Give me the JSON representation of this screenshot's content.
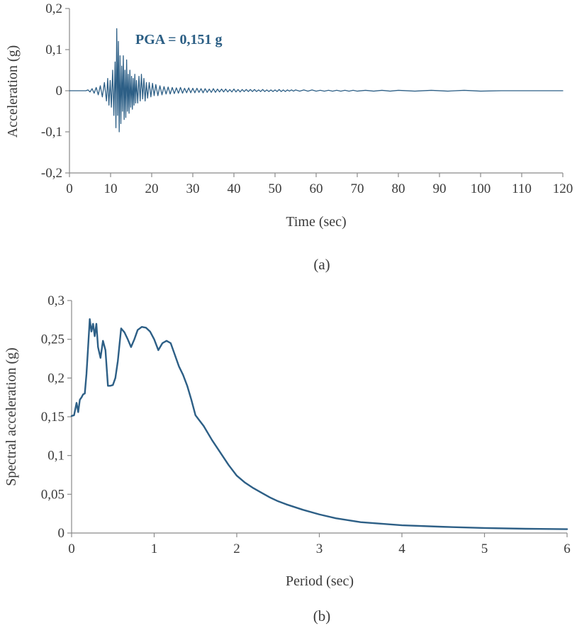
{
  "figure_labels": [
    "(a)",
    "(b)"
  ],
  "chart_data": [
    {
      "type": "line",
      "title": "",
      "xlabel": "Time (sec)",
      "ylabel": "Acceleration (g)",
      "xlim": [
        0,
        120
      ],
      "ylim": [
        -0.2,
        0.2
      ],
      "xticks": [
        0,
        10,
        20,
        30,
        40,
        50,
        60,
        70,
        80,
        90,
        100,
        110,
        120
      ],
      "xtick_labels": [
        "0",
        "10",
        "20",
        "30",
        "40",
        "50",
        "60",
        "70",
        "80",
        "90",
        "100",
        "110",
        "120"
      ],
      "yticks": [
        -0.2,
        -0.1,
        0,
        0.1,
        0.2
      ],
      "ytick_labels": [
        "-0,2",
        "-0,1",
        "0",
        "0,1",
        "0,2"
      ],
      "grid": false,
      "annotation": "PGA = 0,151 g",
      "color": "#2d5f86",
      "series": [
        {
          "x": [
            0,
            4.0,
            4.5,
            5.0,
            5.5,
            6.0,
            6.5,
            7.0,
            7.5,
            8.0,
            8.5,
            9.0,
            9.3,
            9.6,
            9.9,
            10.2,
            10.5,
            10.8,
            11.1,
            11.3,
            11.5,
            11.7,
            11.9,
            12.1,
            12.3,
            12.5,
            12.7,
            12.9,
            13.1,
            13.3,
            13.5,
            13.7,
            13.9,
            14.1,
            14.3,
            14.5,
            14.7,
            14.9,
            15.1,
            15.3,
            15.5,
            15.7,
            15.9,
            16.1,
            16.3,
            16.6,
            16.9,
            17.2,
            17.5,
            17.8,
            18.1,
            18.4,
            18.7,
            19.0,
            19.4,
            19.8,
            20.2,
            20.6,
            21.0,
            21.5,
            22.0,
            22.5,
            23.0,
            23.5,
            24.0,
            24.5,
            25.0,
            25.5,
            26.0,
            26.5,
            27.0,
            27.5,
            28.0,
            28.5,
            29.0,
            29.5,
            30.0,
            30.5,
            31.0,
            31.5,
            32.0,
            32.5,
            33.0,
            33.5,
            34.0,
            34.5,
            35.0,
            35.5,
            36.0,
            36.5,
            37.0,
            37.5,
            38.0,
            38.5,
            39.0,
            39.5,
            40.0,
            40.5,
            41.0,
            41.5,
            42.0,
            42.5,
            43.0,
            43.5,
            44.0,
            44.5,
            45.0,
            45.5,
            46.0,
            46.5,
            47.0,
            47.5,
            48.0,
            48.5,
            49.0,
            49.5,
            50.0,
            50.5,
            51.0,
            51.5,
            52.0,
            52.5,
            53.0,
            53.5,
            54.0,
            54.5,
            55.0,
            56.0,
            57.0,
            58.0,
            59.0,
            60.0,
            61.0,
            62.0,
            63.0,
            64.0,
            65.0,
            66.0,
            67.0,
            68.0,
            69.0,
            70.0,
            72.0,
            74.0,
            76.0,
            78.0,
            80.0,
            84.0,
            88.0,
            92.0,
            96.0,
            100.0,
            105.0,
            110.0,
            115.0,
            120.0
          ],
          "y": [
            0,
            0,
            0.002,
            -0.003,
            0.005,
            -0.006,
            0.008,
            -0.01,
            0.012,
            -0.015,
            0.02,
            -0.025,
            0.03,
            -0.035,
            0.025,
            -0.04,
            0.05,
            -0.06,
            0.07,
            -0.09,
            0.151,
            -0.06,
            0.12,
            -0.1,
            0.085,
            -0.08,
            0.06,
            -0.05,
            0.085,
            -0.07,
            0.05,
            -0.065,
            0.075,
            -0.05,
            0.04,
            -0.055,
            0.05,
            -0.04,
            0.035,
            -0.045,
            0.03,
            -0.035,
            0.04,
            -0.03,
            0.025,
            -0.03,
            0.035,
            -0.025,
            0.04,
            -0.02,
            0.03,
            -0.025,
            0.02,
            -0.018,
            0.02,
            -0.015,
            0.018,
            -0.012,
            0.015,
            -0.012,
            0.012,
            -0.01,
            0.01,
            -0.008,
            0.009,
            -0.008,
            0.008,
            -0.007,
            0.007,
            -0.006,
            0.008,
            -0.006,
            0.006,
            -0.005,
            0.007,
            -0.005,
            0.006,
            -0.005,
            0.006,
            -0.004,
            0.005,
            -0.005,
            0.005,
            -0.004,
            0.004,
            -0.004,
            0.005,
            -0.004,
            0.004,
            -0.003,
            0.004,
            -0.003,
            0.004,
            -0.003,
            0.003,
            -0.003,
            0.004,
            -0.003,
            0.003,
            -0.003,
            0.003,
            -0.002,
            0.003,
            -0.002,
            0.003,
            -0.002,
            0.003,
            -0.002,
            0.002,
            -0.002,
            0.003,
            -0.002,
            0.002,
            -0.002,
            0.002,
            -0.002,
            0.002,
            -0.002,
            0.003,
            -0.002,
            0.002,
            -0.002,
            0.002,
            -0.001,
            0.002,
            -0.001,
            0.002,
            -0.001,
            0.002,
            -0.001,
            0.002,
            -0.001,
            0.001,
            -0.001,
            0.001,
            -0.001,
            0.001,
            -0.001,
            0.001,
            -0.001,
            0.001,
            -0.001,
            0.001,
            -0.001,
            0.001,
            -0.001,
            0.001,
            -0.001,
            0.001,
            -0.001,
            0.001,
            -0.001,
            0.0,
            0.0,
            0.0,
            0.0
          ]
        }
      ]
    },
    {
      "type": "line",
      "title": "",
      "xlabel": "Period (sec)",
      "ylabel": "Spectral acceleration (g)",
      "xlim": [
        0,
        6
      ],
      "ylim": [
        0,
        0.3
      ],
      "xticks": [
        0,
        1,
        2,
        3,
        4,
        5,
        6
      ],
      "xtick_labels": [
        "0",
        "1",
        "2",
        "3",
        "4",
        "5",
        "6"
      ],
      "yticks": [
        0,
        0.05,
        0.1,
        0.15,
        0.2,
        0.25,
        0.3
      ],
      "ytick_labels": [
        "0",
        "0,05",
        "0,1",
        "0,15",
        "0,2",
        "0,25",
        "0,3"
      ],
      "grid": false,
      "color": "#2d5f86",
      "series": [
        {
          "x": [
            0,
            0.03,
            0.06,
            0.08,
            0.1,
            0.12,
            0.14,
            0.16,
            0.18,
            0.2,
            0.22,
            0.24,
            0.26,
            0.28,
            0.3,
            0.32,
            0.35,
            0.38,
            0.41,
            0.44,
            0.47,
            0.5,
            0.53,
            0.56,
            0.6,
            0.64,
            0.68,
            0.72,
            0.76,
            0.8,
            0.85,
            0.9,
            0.95,
            1.0,
            1.05,
            1.1,
            1.15,
            1.2,
            1.25,
            1.3,
            1.35,
            1.4,
            1.45,
            1.5,
            1.55,
            1.6,
            1.7,
            1.8,
            1.9,
            2.0,
            2.1,
            2.2,
            2.3,
            2.4,
            2.5,
            2.6,
            2.8,
            3.0,
            3.2,
            3.5,
            4.0,
            4.5,
            5.0,
            5.5,
            6.0
          ],
          "y": [
            0.151,
            0.152,
            0.168,
            0.156,
            0.172,
            0.175,
            0.179,
            0.18,
            0.205,
            0.24,
            0.276,
            0.26,
            0.27,
            0.254,
            0.27,
            0.24,
            0.226,
            0.248,
            0.236,
            0.19,
            0.19,
            0.191,
            0.2,
            0.222,
            0.264,
            0.259,
            0.25,
            0.24,
            0.25,
            0.262,
            0.266,
            0.265,
            0.26,
            0.25,
            0.236,
            0.245,
            0.248,
            0.245,
            0.23,
            0.215,
            0.204,
            0.19,
            0.172,
            0.152,
            0.145,
            0.138,
            0.12,
            0.104,
            0.088,
            0.074,
            0.065,
            0.058,
            0.052,
            0.046,
            0.041,
            0.037,
            0.03,
            0.024,
            0.019,
            0.014,
            0.01,
            0.008,
            0.0065,
            0.0055,
            0.005
          ]
        }
      ]
    }
  ]
}
